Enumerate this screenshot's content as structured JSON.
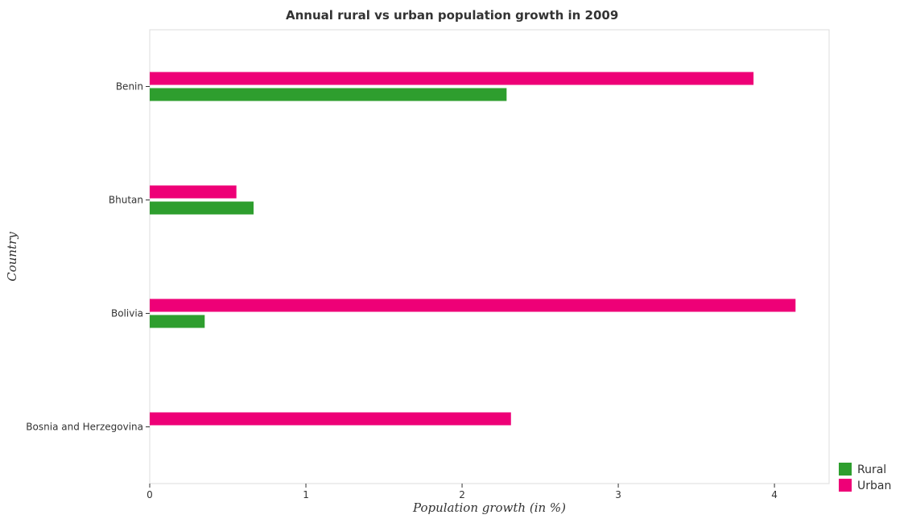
{
  "chart_data": {
    "type": "bar",
    "orientation": "horizontal",
    "title": "Annual rural vs urban population growth in 2009",
    "xlabel": "Population growth (in %)",
    "ylabel": "Country",
    "categories": [
      "Benin",
      "Bhutan",
      "Bolivia",
      "Bosnia and Herzegovina"
    ],
    "series": [
      {
        "name": "Rural",
        "color": "#2e9e2e",
        "values": [
          2.285,
          0.665,
          0.352,
          0
        ]
      },
      {
        "name": "Urban",
        "color": "#ee0077",
        "values": [
          3.866,
          0.555,
          4.135,
          2.313
        ]
      }
    ],
    "xlim": [
      0,
      4.35
    ],
    "xticks": [
      "0",
      "1",
      "2",
      "3",
      "4"
    ],
    "grid": false,
    "legend_position": "bottom-right"
  }
}
